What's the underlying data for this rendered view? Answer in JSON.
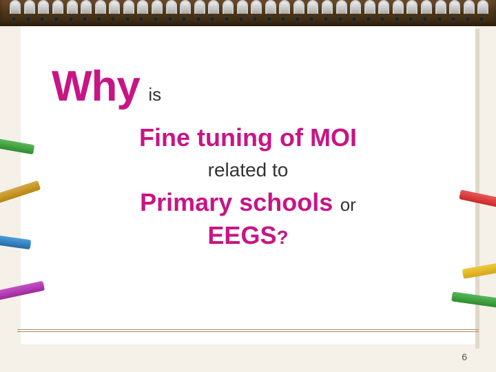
{
  "colors": {
    "accent": "#c71585",
    "text": "#333333",
    "paper": "#ffffff",
    "background": "#f5f0e8",
    "rule": "#b08a5a",
    "binding": "#4a3518"
  },
  "typography": {
    "family": "Verdana",
    "why_fontsize": 62,
    "heading_fontsize": 36,
    "sub_fontsize": 26,
    "related_fontsize": 28
  },
  "slide": {
    "line1": {
      "why": "Why",
      "is": "is"
    },
    "line2": "Fine tuning of MOI",
    "line3": "related to",
    "line4": {
      "primary_schools": "Primary schools",
      "or": "or"
    },
    "line5": {
      "eegs": "EEGS",
      "qmark": "?"
    },
    "page_number": "6"
  },
  "pencils": {
    "left": [
      {
        "color": "#2e8b2e",
        "angle": 10
      },
      {
        "color": "#b8860b",
        "angle": -18
      },
      {
        "color": "#2868a8",
        "angle": 8
      },
      {
        "color": "#9b2a9b",
        "angle": -12
      }
    ],
    "right": [
      {
        "color": "#c82828",
        "angle": 12
      },
      {
        "color": "#d4a818",
        "angle": -10
      },
      {
        "color": "#2e8b2e",
        "angle": 8
      }
    ]
  },
  "spiral_ring_count": 34
}
